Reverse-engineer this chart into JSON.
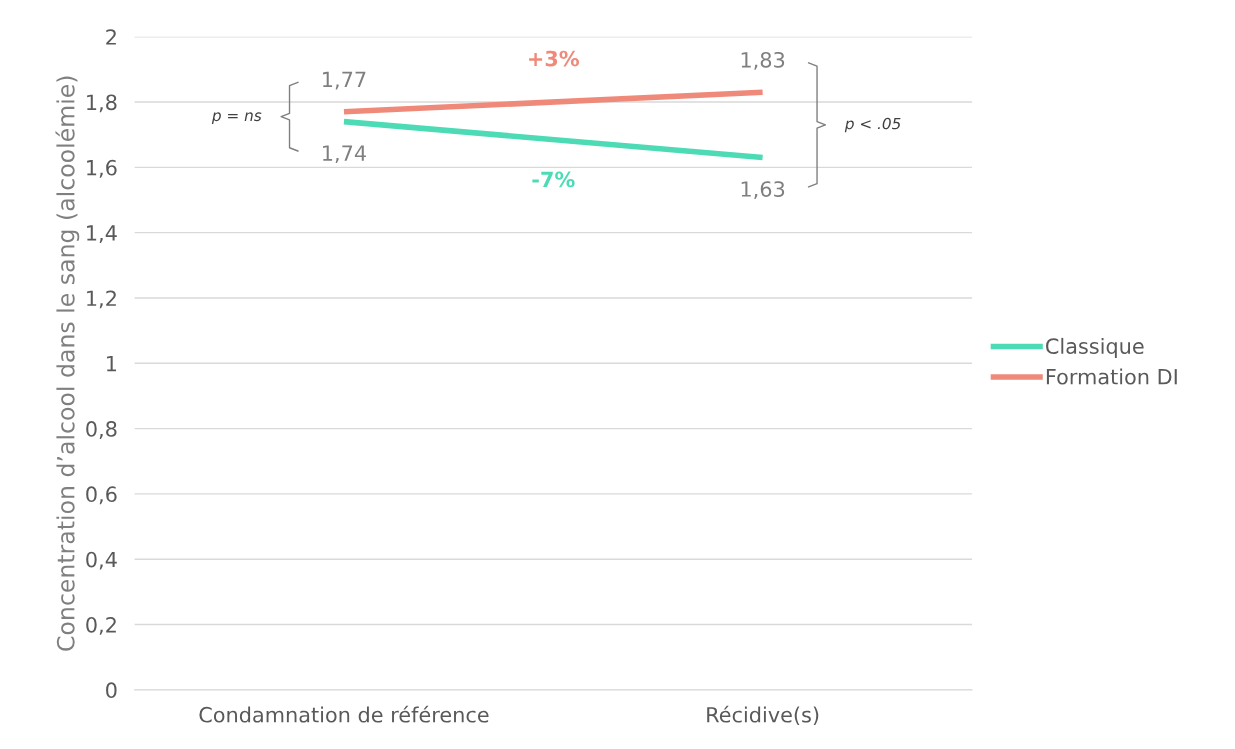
{
  "chart_data": {
    "type": "line",
    "ylabel": "Concentration d’alcool dans le sang (alcoolémie)",
    "categories": [
      "Condamnation de référence",
      "Récidive(s)"
    ],
    "series": [
      {
        "name": "Classique",
        "color": "#4ddbb5",
        "values": [
          1.74,
          1.63
        ],
        "value_labels": [
          "1,74",
          "1,63"
        ]
      },
      {
        "name": "Formation DI",
        "color": "#ef8a7b",
        "values": [
          1.77,
          1.83
        ],
        "value_labels": [
          "1,77",
          "1,83"
        ]
      }
    ],
    "ylim": [
      0,
      2
    ],
    "yticks": [
      0,
      {
        "value": 0.2,
        "label": "0,2"
      },
      {
        "value": 0.4,
        "label": "0,4"
      },
      {
        "value": 0.6,
        "label": "0,6"
      },
      {
        "value": 0.8,
        "label": "0,8"
      },
      1,
      {
        "value": 1.2,
        "label": "1,2"
      },
      {
        "value": 1.4,
        "label": "1,4"
      },
      {
        "value": 1.6,
        "label": "1,6"
      },
      {
        "value": 1.8,
        "label": "1,8"
      },
      2
    ],
    "annotations": [
      "+3%",
      "-7%",
      "p = ns",
      "p < .05"
    ],
    "grid": "y",
    "legend": "right",
    "marker": "none",
    "line_style": "solid"
  }
}
